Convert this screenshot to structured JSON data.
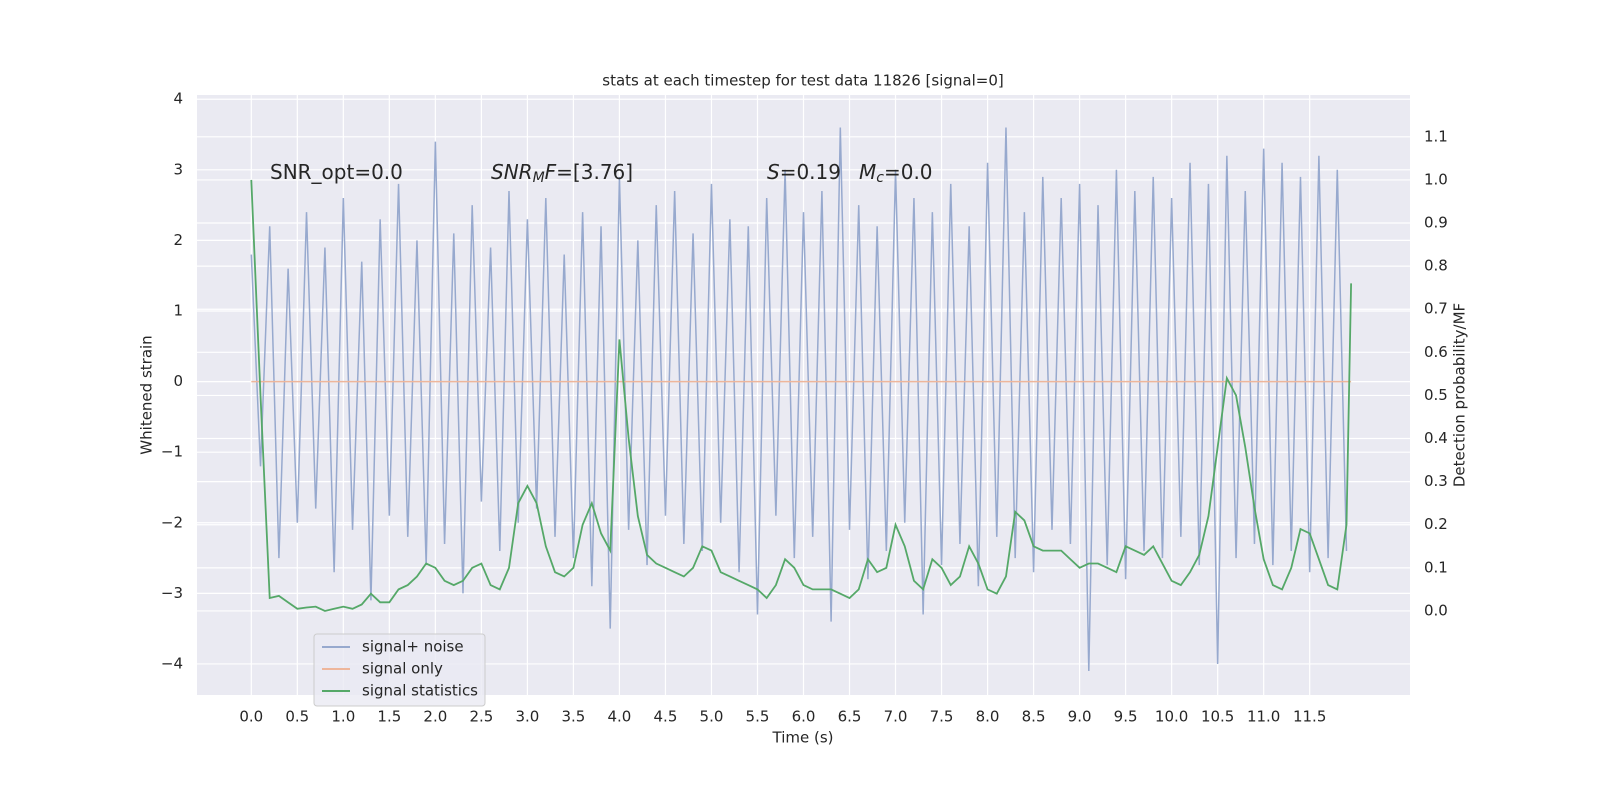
{
  "chart_data": {
    "type": "line",
    "title": "stats at each timestep for test data 11826 [signal=0]",
    "xlabel": "Time (s)",
    "ylabel": "Whitened strain",
    "y2label": "Detection probability/MF",
    "annotations": [
      {
        "base": "SNR_opt=0.0"
      },
      {
        "base": "SNR",
        "sub": "M",
        "tail": "F=[3.76]"
      },
      {
        "base": "S",
        "tail": "=0.19"
      },
      {
        "base": "M",
        "sub": "c",
        "tail": "=0.0"
      }
    ],
    "xlim": [
      -0.59,
      12.59
    ],
    "ylim": [
      -4.44,
      4.06
    ],
    "y2lim": [
      -0.195,
      1.197
    ],
    "xticks": [
      {
        "value": 0,
        "label": "0.0"
      },
      0.5,
      {
        "value": 1,
        "label": "1.0"
      },
      1.5,
      {
        "value": 2,
        "label": "2.0"
      },
      2.5,
      {
        "value": 3,
        "label": "3.0"
      },
      3.5,
      {
        "value": 4,
        "label": "4.0"
      },
      4.5,
      {
        "value": 5,
        "label": "5.0"
      },
      5.5,
      {
        "value": 6,
        "label": "6.0"
      },
      6.5,
      {
        "value": 7,
        "label": "7.0"
      },
      7.5,
      {
        "value": 8,
        "label": "8.0"
      },
      8.5,
      {
        "value": 9,
        "label": "9.0"
      },
      9.5,
      {
        "value": 10,
        "label": "10.0"
      },
      10.5,
      {
        "value": 11,
        "label": "11.0"
      },
      11.5
    ],
    "yticks": [
      {
        "value": -4,
        "label": "−4"
      },
      {
        "value": -3,
        "label": "−3"
      },
      {
        "value": -2,
        "label": "−2"
      },
      {
        "value": -1,
        "label": "−1"
      },
      0,
      1,
      2,
      3,
      4
    ],
    "y2ticks": [
      {
        "value": 0,
        "label": "0.0"
      },
      0.1,
      0.2,
      0.3,
      0.4,
      0.5,
      0.6,
      0.7,
      0.8,
      0.9,
      {
        "value": 1,
        "label": "1.0"
      },
      1.1
    ],
    "grid": true,
    "legend": "lower left",
    "series": [
      {
        "name": "signal+ noise",
        "color": "#97a9ce",
        "x": [
          0,
          0.1,
          0.2,
          0.3,
          0.4,
          0.5,
          0.6,
          0.7,
          0.8,
          0.9,
          1,
          1.1,
          1.2,
          1.3,
          1.4,
          1.5,
          1.6,
          1.7,
          1.8,
          1.9,
          2,
          2.1,
          2.2,
          2.3,
          2.4,
          2.5,
          2.6,
          2.7,
          2.8,
          2.9,
          3,
          3.1,
          3.2,
          3.3,
          3.4,
          3.5,
          3.6,
          3.7,
          3.8,
          3.9,
          4,
          4.1,
          4.2,
          4.3,
          4.4,
          4.5,
          4.6,
          4.7,
          4.8,
          4.9,
          5,
          5.1,
          5.2,
          5.3,
          5.4,
          5.5,
          5.6,
          5.7,
          5.8,
          5.9,
          6,
          6.1,
          6.2,
          6.3,
          6.4,
          6.5,
          6.6,
          6.7,
          6.8,
          6.9,
          7,
          7.1,
          7.2,
          7.3,
          7.4,
          7.5,
          7.6,
          7.7,
          7.8,
          7.9,
          8,
          8.1,
          8.2,
          8.3,
          8.4,
          8.5,
          8.6,
          8.7,
          8.8,
          8.9,
          9,
          9.1,
          9.2,
          9.3,
          9.4,
          9.5,
          9.6,
          9.7,
          9.8,
          9.9,
          10,
          10.1,
          10.2,
          10.3,
          10.4,
          10.5,
          10.6,
          10.7,
          10.8,
          10.9,
          11,
          11.1,
          11.2,
          11.3,
          11.4,
          11.5,
          11.6,
          11.7,
          11.8,
          11.9
        ],
        "values": [
          1.8,
          -1.2,
          2.2,
          -2.5,
          1.6,
          -2.0,
          2.4,
          -1.8,
          1.9,
          -2.7,
          2.6,
          -2.1,
          1.7,
          -3.1,
          2.3,
          -1.9,
          2.8,
          -2.2,
          2.0,
          -2.6,
          3.4,
          -2.3,
          2.1,
          -3.0,
          2.5,
          -1.7,
          1.9,
          -2.4,
          2.7,
          -2.0,
          2.3,
          -1.8,
          2.6,
          -2.2,
          1.8,
          -2.5,
          2.4,
          -2.9,
          2.2,
          -3.5,
          2.9,
          -2.1,
          2.0,
          -2.6,
          2.5,
          -1.9,
          2.7,
          -2.3,
          2.1,
          -2.4,
          2.8,
          -2.0,
          2.3,
          -2.7,
          2.2,
          -3.3,
          2.6,
          -1.9,
          3.0,
          -2.5,
          2.4,
          -2.2,
          2.7,
          -3.4,
          3.6,
          -2.1,
          2.5,
          -2.8,
          2.2,
          -2.4,
          3.0,
          -2.0,
          2.6,
          -3.3,
          2.4,
          -2.6,
          2.8,
          -2.3,
          2.2,
          -2.9,
          3.1,
          -2.2,
          3.6,
          -2.5,
          2.4,
          -2.7,
          2.9,
          -2.1,
          2.6,
          -2.3,
          2.8,
          -4.1,
          2.5,
          -2.6,
          3.0,
          -2.8,
          2.7,
          -2.4,
          2.9,
          -2.5,
          2.6,
          -2.2,
          3.1,
          -2.6,
          2.8,
          -4.0,
          3.2,
          -2.5,
          2.7,
          -2.3,
          3.3,
          -2.6,
          3.1,
          -2.4,
          2.9,
          -2.7,
          3.2,
          -2.5,
          3.0,
          -2.4
        ]
      },
      {
        "name": "signal only",
        "color": "#eeb69b",
        "x": [
          0,
          11.95
        ],
        "values": [
          0,
          0
        ]
      },
      {
        "name": "signal statistics",
        "color": "#55a868",
        "axis": "y2",
        "x": [
          0,
          0.1,
          0.2,
          0.3,
          0.4,
          0.5,
          0.6,
          0.7,
          0.8,
          0.9,
          1,
          1.1,
          1.2,
          1.3,
          1.4,
          1.5,
          1.6,
          1.7,
          1.8,
          1.9,
          2,
          2.1,
          2.2,
          2.3,
          2.4,
          2.5,
          2.6,
          2.7,
          2.8,
          2.9,
          3,
          3.1,
          3.2,
          3.3,
          3.4,
          3.5,
          3.6,
          3.7,
          3.8,
          3.9,
          4,
          4.1,
          4.2,
          4.3,
          4.4,
          4.5,
          4.6,
          4.7,
          4.8,
          4.9,
          5,
          5.1,
          5.2,
          5.3,
          5.4,
          5.5,
          5.6,
          5.7,
          5.8,
          5.9,
          6,
          6.1,
          6.2,
          6.3,
          6.4,
          6.5,
          6.6,
          6.7,
          6.8,
          6.9,
          7,
          7.1,
          7.2,
          7.3,
          7.4,
          7.5,
          7.6,
          7.7,
          7.8,
          7.9,
          8,
          8.1,
          8.2,
          8.3,
          8.4,
          8.5,
          8.6,
          8.7,
          8.8,
          8.9,
          9,
          9.1,
          9.2,
          9.3,
          9.4,
          9.5,
          9.6,
          9.7,
          9.8,
          9.9,
          10,
          10.1,
          10.2,
          10.3,
          10.4,
          10.5,
          10.6,
          10.7,
          10.8,
          10.9,
          11,
          11.1,
          11.2,
          11.3,
          11.4,
          11.5,
          11.6,
          11.7,
          11.8,
          11.9,
          11.95
        ],
        "values": [
          1.0,
          0.5,
          0.03,
          0.035,
          0.02,
          0.005,
          0.008,
          0.01,
          0.0,
          0.005,
          0.01,
          0.005,
          0.015,
          0.04,
          0.02,
          0.02,
          0.05,
          0.06,
          0.08,
          0.11,
          0.1,
          0.07,
          0.06,
          0.07,
          0.1,
          0.11,
          0.06,
          0.05,
          0.1,
          0.25,
          0.29,
          0.25,
          0.15,
          0.09,
          0.08,
          0.1,
          0.2,
          0.25,
          0.18,
          0.14,
          0.63,
          0.4,
          0.22,
          0.13,
          0.11,
          0.1,
          0.09,
          0.08,
          0.1,
          0.15,
          0.14,
          0.09,
          0.08,
          0.07,
          0.06,
          0.05,
          0.03,
          0.06,
          0.12,
          0.1,
          0.06,
          0.05,
          0.05,
          0.05,
          0.04,
          0.03,
          0.05,
          0.12,
          0.09,
          0.1,
          0.2,
          0.15,
          0.07,
          0.05,
          0.12,
          0.1,
          0.06,
          0.08,
          0.15,
          0.11,
          0.05,
          0.04,
          0.08,
          0.23,
          0.21,
          0.15,
          0.14,
          0.14,
          0.14,
          0.12,
          0.1,
          0.11,
          0.11,
          0.1,
          0.09,
          0.15,
          0.14,
          0.13,
          0.15,
          0.11,
          0.07,
          0.06,
          0.09,
          0.13,
          0.22,
          0.38,
          0.54,
          0.5,
          0.38,
          0.24,
          0.12,
          0.06,
          0.05,
          0.1,
          0.19,
          0.18,
          0.12,
          0.06,
          0.05,
          0.2,
          0.76
        ]
      }
    ]
  }
}
